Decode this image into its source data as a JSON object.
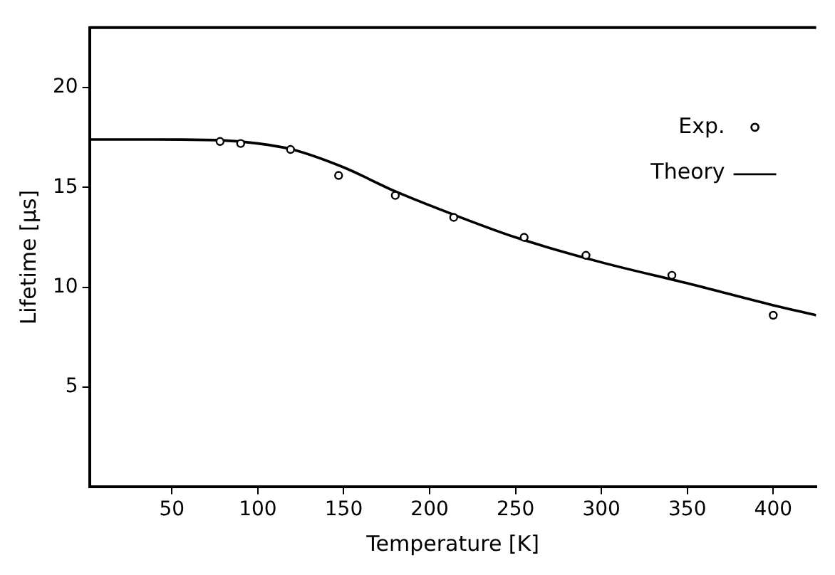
{
  "chart_data": {
    "type": "scatter",
    "xlabel": "Temperature [K]",
    "ylabel": "Lifetime [µs]",
    "xlim": [
      2,
      425
    ],
    "xticks": [
      50,
      100,
      150,
      200,
      250,
      300,
      350,
      400
    ],
    "ylim": [
      0,
      23
    ],
    "yticks": [
      5,
      10,
      15,
      20
    ],
    "grid": false,
    "legend": "top right",
    "series": [
      {
        "name": "Exp.",
        "type": "scatter",
        "marker": "circle",
        "color": "#000000",
        "x": [
          78,
          90,
          119,
          147,
          180,
          214,
          255,
          291,
          341,
          400
        ],
        "values": [
          17.3,
          17.2,
          16.9,
          15.6,
          14.6,
          13.5,
          12.5,
          11.6,
          10.6,
          8.6
        ]
      },
      {
        "name": "Theory",
        "type": "line",
        "marker": "none",
        "line_style": "solid",
        "color": "#000000",
        "x": [
          2,
          40,
          80,
          100,
          120,
          150,
          180,
          215,
          250,
          300,
          350,
          400,
          425
        ],
        "values": [
          17.4,
          17.4,
          17.35,
          17.2,
          16.9,
          16.0,
          14.8,
          13.6,
          12.5,
          11.25,
          10.2,
          9.1,
          8.6
        ]
      }
    ]
  }
}
